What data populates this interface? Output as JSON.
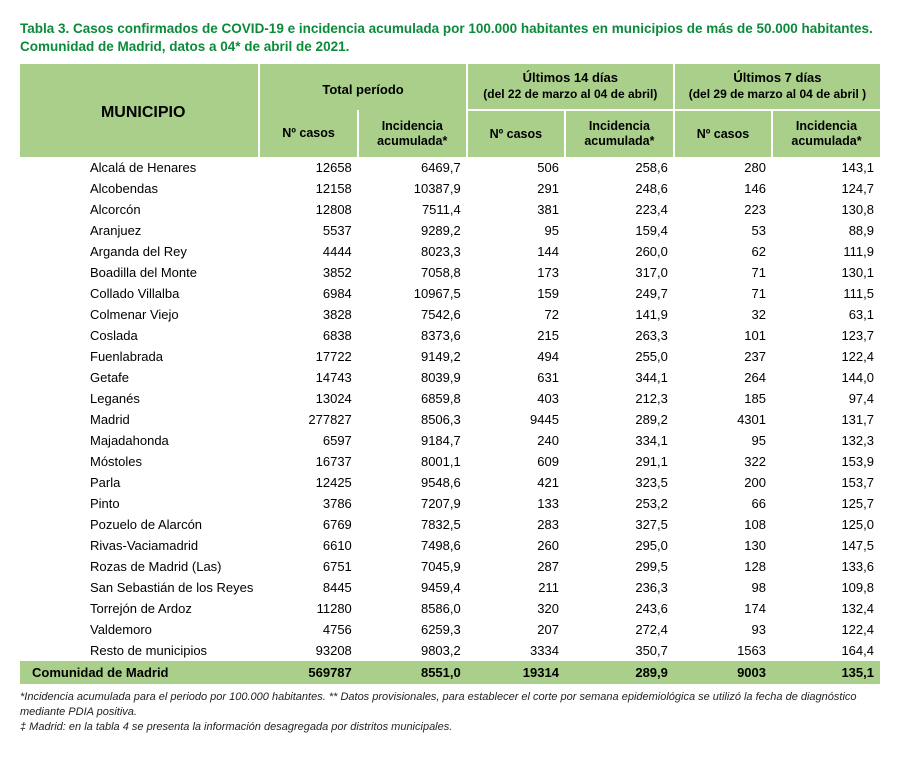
{
  "title": "Tabla 3. Casos confirmados de COVID-19 e incidencia acumulada por 100.000 habitantes en municipios de más de 50.000 habitantes. Comunidad de Madrid, datos a 04* de abril de 2021.",
  "colors": {
    "title": "#0b8a3a",
    "header_bg": "#a9cf8a",
    "text": "#000000",
    "background": "#ffffff"
  },
  "header": {
    "municipio": "MUNICIPIO",
    "groups": [
      {
        "top": "Total período",
        "sub": ""
      },
      {
        "top": "Últimos 14 días",
        "sub": "(del 22 de marzo al 04 de abril)"
      },
      {
        "top": "Últimos 7 días",
        "sub": "(del 29 de marzo al 04 de abril )"
      }
    ],
    "cols": {
      "casos": "Nº casos",
      "incidencia": "Incidencia acumulada*"
    }
  },
  "rows": [
    {
      "name": "Alcalá de Henares",
      "tc": "12658",
      "ti": "6469,7",
      "c14": "506",
      "i14": "258,6",
      "c7": "280",
      "i7": "143,1"
    },
    {
      "name": "Alcobendas",
      "tc": "12158",
      "ti": "10387,9",
      "c14": "291",
      "i14": "248,6",
      "c7": "146",
      "i7": "124,7"
    },
    {
      "name": "Alcorcón",
      "tc": "12808",
      "ti": "7511,4",
      "c14": "381",
      "i14": "223,4",
      "c7": "223",
      "i7": "130,8"
    },
    {
      "name": "Aranjuez",
      "tc": "5537",
      "ti": "9289,2",
      "c14": "95",
      "i14": "159,4",
      "c7": "53",
      "i7": "88,9"
    },
    {
      "name": "Arganda del Rey",
      "tc": "4444",
      "ti": "8023,3",
      "c14": "144",
      "i14": "260,0",
      "c7": "62",
      "i7": "111,9"
    },
    {
      "name": "Boadilla del Monte",
      "tc": "3852",
      "ti": "7058,8",
      "c14": "173",
      "i14": "317,0",
      "c7": "71",
      "i7": "130,1"
    },
    {
      "name": "Collado Villalba",
      "tc": "6984",
      "ti": "10967,5",
      "c14": "159",
      "i14": "249,7",
      "c7": "71",
      "i7": "111,5"
    },
    {
      "name": "Colmenar Viejo",
      "tc": "3828",
      "ti": "7542,6",
      "c14": "72",
      "i14": "141,9",
      "c7": "32",
      "i7": "63,1"
    },
    {
      "name": "Coslada",
      "tc": "6838",
      "ti": "8373,6",
      "c14": "215",
      "i14": "263,3",
      "c7": "101",
      "i7": "123,7"
    },
    {
      "name": "Fuenlabrada",
      "tc": "17722",
      "ti": "9149,2",
      "c14": "494",
      "i14": "255,0",
      "c7": "237",
      "i7": "122,4"
    },
    {
      "name": "Getafe",
      "tc": "14743",
      "ti": "8039,9",
      "c14": "631",
      "i14": "344,1",
      "c7": "264",
      "i7": "144,0"
    },
    {
      "name": "Leganés",
      "tc": "13024",
      "ti": "6859,8",
      "c14": "403",
      "i14": "212,3",
      "c7": "185",
      "i7": "97,4"
    },
    {
      "name": "Madrid",
      "tc": "277827",
      "ti": "8506,3",
      "c14": "9445",
      "i14": "289,2",
      "c7": "4301",
      "i7": "131,7"
    },
    {
      "name": "Majadahonda",
      "tc": "6597",
      "ti": "9184,7",
      "c14": "240",
      "i14": "334,1",
      "c7": "95",
      "i7": "132,3"
    },
    {
      "name": "Móstoles",
      "tc": "16737",
      "ti": "8001,1",
      "c14": "609",
      "i14": "291,1",
      "c7": "322",
      "i7": "153,9"
    },
    {
      "name": "Parla",
      "tc": "12425",
      "ti": "9548,6",
      "c14": "421",
      "i14": "323,5",
      "c7": "200",
      "i7": "153,7"
    },
    {
      "name": "Pinto",
      "tc": "3786",
      "ti": "7207,9",
      "c14": "133",
      "i14": "253,2",
      "c7": "66",
      "i7": "125,7"
    },
    {
      "name": "Pozuelo de Alarcón",
      "tc": "6769",
      "ti": "7832,5",
      "c14": "283",
      "i14": "327,5",
      "c7": "108",
      "i7": "125,0"
    },
    {
      "name": "Rivas-Vaciamadrid",
      "tc": "6610",
      "ti": "7498,6",
      "c14": "260",
      "i14": "295,0",
      "c7": "130",
      "i7": "147,5"
    },
    {
      "name": "Rozas de Madrid (Las)",
      "tc": "6751",
      "ti": "7045,9",
      "c14": "287",
      "i14": "299,5",
      "c7": "128",
      "i7": "133,6"
    },
    {
      "name": "San Sebastián de los Reyes",
      "tc": "8445",
      "ti": "9459,4",
      "c14": "211",
      "i14": "236,3",
      "c7": "98",
      "i7": "109,8"
    },
    {
      "name": "Torrejón de Ardoz",
      "tc": "11280",
      "ti": "8586,0",
      "c14": "320",
      "i14": "243,6",
      "c7": "174",
      "i7": "132,4"
    },
    {
      "name": "Valdemoro",
      "tc": "4756",
      "ti": "6259,3",
      "c14": "207",
      "i14": "272,4",
      "c7": "93",
      "i7": "122,4"
    },
    {
      "name": "Resto de municipios",
      "tc": "93208",
      "ti": "9803,2",
      "c14": "3334",
      "i14": "350,7",
      "c7": "1563",
      "i7": "164,4"
    }
  ],
  "total": {
    "name": "Comunidad de Madrid",
    "tc": "569787",
    "ti": "8551,0",
    "c14": "19314",
    "i14": "289,9",
    "c7": "9003",
    "i7": "135,1"
  },
  "footnotes": [
    "*Incidencia acumulada para el periodo por 100.000 habitantes. ** Datos provisionales, para establecer el corte por semana epidemiológica se utilizó la fecha de diagnóstico mediante PDIA positiva.",
    "‡ Madrid: en la tabla 4 se presenta la información desagregada por distritos municipales."
  ]
}
